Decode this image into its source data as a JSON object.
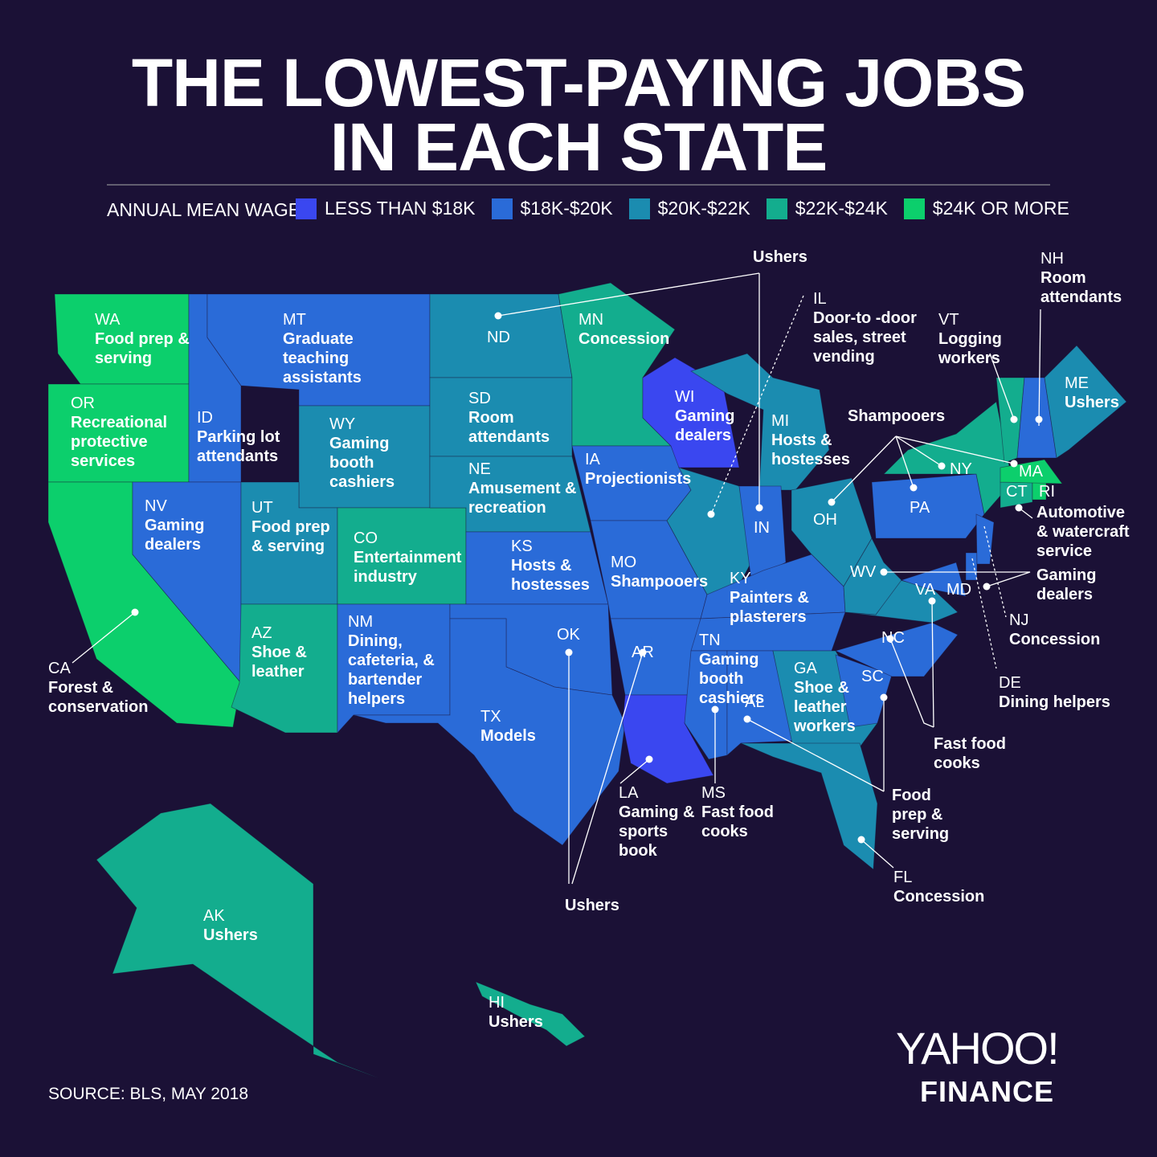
{
  "title_lines": [
    "THE LOWEST-PAYING JOBS",
    "IN EACH STATE"
  ],
  "legend": {
    "label": "ANNUAL MEAN WAGE:",
    "items": [
      {
        "label": "LESS THAN $18K",
        "color": "#3a47f0"
      },
      {
        "label": "$18K-$20K",
        "color": "#2a6bd8"
      },
      {
        "label": "$20K-$22K",
        "color": "#1b8cb0"
      },
      {
        "label": "$22K-$24K",
        "color": "#13ad8e"
      },
      {
        "label": "$24K OR MORE",
        "color": "#0ccf6c"
      }
    ]
  },
  "states": [
    {
      "abbr": "WA",
      "job": "Food prep & serving",
      "color": "#0ccf6c"
    },
    {
      "abbr": "OR",
      "job": "Recreational protective services",
      "color": "#0ccf6c"
    },
    {
      "abbr": "CA",
      "job": "Forest & conservation",
      "color": "#0ccf6c"
    },
    {
      "abbr": "ID",
      "job": "Parking lot attendants",
      "color": "#2a6bd8"
    },
    {
      "abbr": "NV",
      "job": "Gaming dealers",
      "color": "#2a6bd8"
    },
    {
      "abbr": "MT",
      "job": "Graduate teaching assistants",
      "color": "#2a6bd8"
    },
    {
      "abbr": "WY",
      "job": "Gaming booth cashiers",
      "color": "#1b8cb0"
    },
    {
      "abbr": "UT",
      "job": "Food prep & serving",
      "color": "#1b8cb0"
    },
    {
      "abbr": "AZ",
      "job": "Shoe & leather",
      "color": "#13ad8e"
    },
    {
      "abbr": "CO",
      "job": "Entertainment industry",
      "color": "#13ad8e"
    },
    {
      "abbr": "NM",
      "job": "Dining, cafeteria, & bartender helpers",
      "color": "#2a6bd8"
    },
    {
      "abbr": "ND",
      "color": "#1b8cb0"
    },
    {
      "abbr": "SD",
      "job": "Room attendants",
      "color": "#1b8cb0"
    },
    {
      "abbr": "NE",
      "job": "Amusement & recreation",
      "color": "#1b8cb0"
    },
    {
      "abbr": "KS",
      "job": "Hosts & hostesses",
      "color": "#2a6bd8"
    },
    {
      "abbr": "OK",
      "color": "#2a6bd8"
    },
    {
      "abbr": "TX",
      "job": "Models",
      "color": "#2a6bd8"
    },
    {
      "abbr": "MN",
      "job": "Concession",
      "color": "#13ad8e"
    },
    {
      "abbr": "IA",
      "job": "Projectionists",
      "color": "#2a6bd8"
    },
    {
      "abbr": "MO",
      "job": "Shampooers",
      "color": "#2a6bd8"
    },
    {
      "abbr": "AR",
      "color": "#2a6bd8"
    },
    {
      "abbr": "LA",
      "job": "Gaming & sports book",
      "color": "#3a47f0"
    },
    {
      "abbr": "WI",
      "job": "Gaming dealers",
      "color": "#3a47f0"
    },
    {
      "abbr": "IL",
      "job": "Door-to -door sales, street vending",
      "color": "#1b8cb0"
    },
    {
      "abbr": "MI",
      "job": "Hosts & hostesses",
      "color": "#1b8cb0"
    },
    {
      "abbr": "IN",
      "color": "#2a6bd8"
    },
    {
      "abbr": "OH",
      "color": "#1b8cb0"
    },
    {
      "abbr": "KY",
      "job": "Painters & plasterers",
      "color": "#2a6bd8"
    },
    {
      "abbr": "TN",
      "job": "Gaming booth cashiers",
      "color": "#2a6bd8"
    },
    {
      "abbr": "MS",
      "job": "Fast food cooks",
      "color": "#2a6bd8"
    },
    {
      "abbr": "AL",
      "color": "#2a6bd8"
    },
    {
      "abbr": "GA",
      "job": "Shoe & leather workers",
      "color": "#1b8cb0"
    },
    {
      "abbr": "FL",
      "job": "Concession",
      "color": "#1b8cb0"
    },
    {
      "abbr": "SC",
      "color": "#2a6bd8"
    },
    {
      "abbr": "NC",
      "color": "#2a6bd8"
    },
    {
      "abbr": "VA",
      "color": "#1b8cb0"
    },
    {
      "abbr": "WV",
      "color": "#1b8cb0"
    },
    {
      "abbr": "MD",
      "color": "#2a6bd8"
    },
    {
      "abbr": "DE",
      "job": "Dining helpers",
      "color": "#2a6bd8"
    },
    {
      "abbr": "PA",
      "color": "#2a6bd8"
    },
    {
      "abbr": "NY",
      "color": "#13ad8e"
    },
    {
      "abbr": "NJ",
      "job": "Concession",
      "color": "#2a6bd8"
    },
    {
      "abbr": "CT",
      "color": "#13ad8e"
    },
    {
      "abbr": "RI",
      "color": "#0ccf6c"
    },
    {
      "abbr": "MA",
      "color": "#0ccf6c"
    },
    {
      "abbr": "VT",
      "job": "Logging workers",
      "color": "#13ad8e"
    },
    {
      "abbr": "NH",
      "job": "Room attendants",
      "color": "#2a6bd8"
    },
    {
      "abbr": "ME",
      "job": "Ushers",
      "color": "#1b8cb0"
    },
    {
      "abbr": "AK",
      "job": "Ushers",
      "color": "#13ad8e"
    },
    {
      "abbr": "HI",
      "job": "Ushers",
      "color": "#13ad8e"
    }
  ],
  "callouts": [
    {
      "label": "Ushers",
      "states": [
        "ND",
        "IN"
      ]
    },
    {
      "label": "Shampooers",
      "states": [
        "OH",
        "PA",
        "NY",
        "MA"
      ]
    },
    {
      "label": "Automotive & watercraft service",
      "states": [
        "CT",
        "RI"
      ]
    },
    {
      "label": "Gaming dealers",
      "states": [
        "WV",
        "MD"
      ]
    },
    {
      "label": "Fast food cooks",
      "states": [
        "VA",
        "NC"
      ]
    },
    {
      "label": "Food prep & serving",
      "states": [
        "SC",
        "AL"
      ]
    },
    {
      "label": "Ushers",
      "states": [
        "OK",
        "AR"
      ]
    }
  ],
  "source": "SOURCE:  BLS, MAY 2018",
  "logo": {
    "top": "YAHOO!",
    "bottom": "FINANCE"
  }
}
